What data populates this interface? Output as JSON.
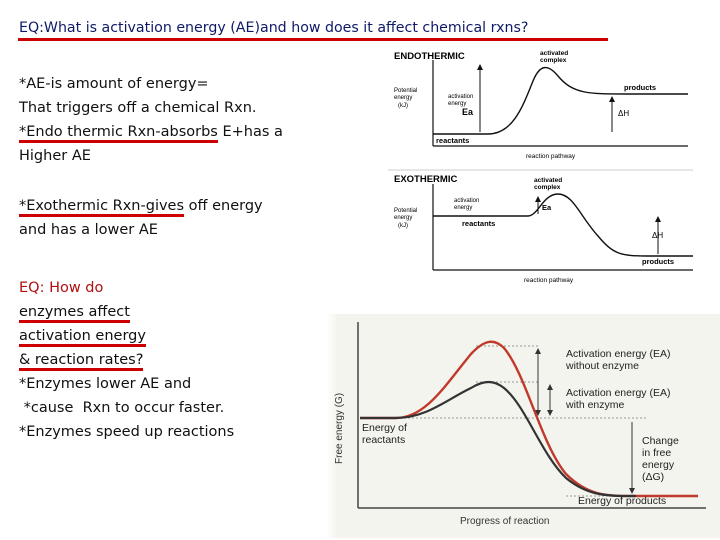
{
  "title": "EQ:What is activation energy (AE)and how does it affect chemical rxns?",
  "left_text": {
    "ae_def_1": "*AE-is amount of energy=",
    "ae_def_2": "That triggers off a chemical Rxn.",
    "endo_u": "*Endo thermic Rxn-absorbs",
    "endo_rest": " E+has a",
    "endo_line2": "Higher AE",
    "exo_u": "*Exothermic Rxn-gives",
    "exo_rest": " off energy",
    "exo_line2": "and has a lower AE",
    "eq2_1": "EQ: How do",
    "eq2_2": "enzymes affect",
    "eq2_3": "activation energy",
    "eq2_4": "& reaction rates?",
    "enz_1": "*Enzymes lower AE and",
    "enz_2": " *cause  Rxn to occur faster.",
    "enz_3": "*Enzymes speed up reactions"
  },
  "endothermic_diagram": {
    "title": "ENDOTHERMIC",
    "activated_complex": [
      "activated",
      "complex"
    ],
    "potential_energy": [
      "Potential",
      "energy",
      "(kJ)"
    ],
    "activation_energy": [
      "activation",
      "energy"
    ],
    "ea": "Ea",
    "products": "products",
    "delta_h": "ΔH",
    "reactants": "reactants",
    "reaction_pathway": "reaction pathway"
  },
  "exothermic_diagram": {
    "title": "EXOTHERMIC",
    "activated_complex": [
      "activated",
      "complex"
    ],
    "potential_energy": [
      "Potential",
      "energy",
      "(kJ)"
    ],
    "activation_energy": [
      "activation",
      "energy"
    ],
    "ea": "Ea",
    "reactants": "reactants",
    "delta_h": "ΔH",
    "products": "products",
    "reaction_pathway": "reaction pathway"
  },
  "enzyme_diagram": {
    "y_label": "Free energy (G)",
    "x_label": "Progress of reaction",
    "ae_without": [
      "Activation energy (EA)",
      "without enzyme"
    ],
    "ae_with": [
      "Activation energy (EA)",
      "with enzyme"
    ],
    "energy_reactants": [
      "Energy of",
      "reactants"
    ],
    "change_free_energy": [
      "Change",
      "in free",
      "energy",
      "(ΔG)"
    ],
    "energy_products": "Energy of products",
    "colors": {
      "without_enzyme": "#c0392b",
      "with_enzyme": "#333333",
      "background": "#f6f6f0"
    }
  }
}
